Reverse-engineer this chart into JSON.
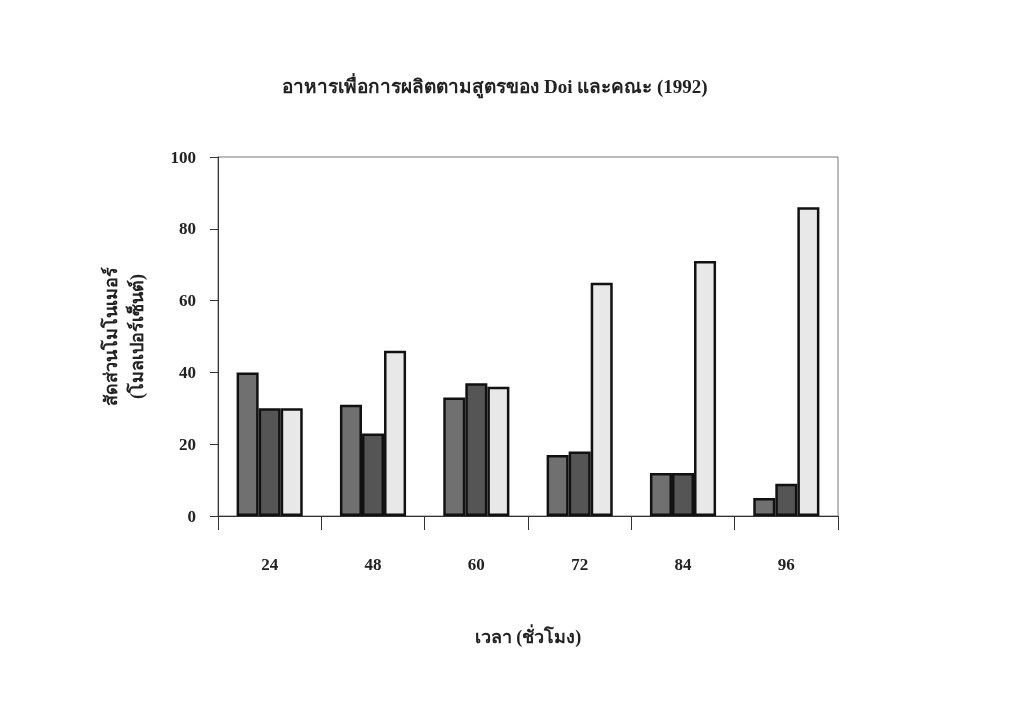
{
  "chart_data": {
    "type": "bar",
    "title": "อาหารเพื่อการผลิตตามสูตรของ Doi และคณะ (1992)",
    "xlabel": "เวลา (ชั่วโมง)",
    "ylabel": "สัดส่วนโมโนเมอร์\n(โมลเปอร์เซ็นต์)",
    "categories": [
      "24",
      "48",
      "60",
      "72",
      "84",
      "96"
    ],
    "series": [
      {
        "color": "#707070",
        "values": [
          40,
          31,
          33,
          17,
          12,
          5
        ]
      },
      {
        "color": "#555555",
        "values": [
          30,
          23,
          37,
          18,
          12,
          9
        ]
      },
      {
        "color": "#e8e8e8",
        "values": [
          30,
          46,
          36,
          65,
          71,
          86
        ]
      }
    ],
    "ylim": [
      0,
      100
    ],
    "yticks": [
      0,
      20,
      40,
      60,
      80,
      100
    ],
    "grid": false
  }
}
